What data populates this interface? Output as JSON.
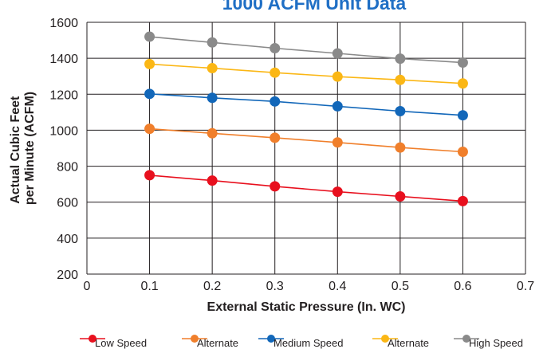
{
  "chart_data": {
    "type": "line",
    "title": "1000 ACFM Unit Data",
    "xlabel": "External Static Pressure (In. WC)",
    "ylabel_lines": [
      "Actual Cubic Feet",
      "per Minute (ACFM)"
    ],
    "xlim": [
      0,
      0.7
    ],
    "ylim": [
      200,
      1600
    ],
    "x_ticks": [
      "0",
      "0.1",
      "0.2",
      "0.3",
      "0.4",
      "0.5",
      "0.6",
      "0.7"
    ],
    "y_ticks": [
      "200",
      "400",
      "600",
      "800",
      "1000",
      "1200",
      "1400",
      "1600"
    ],
    "grid": true,
    "legend_position": "bottom",
    "x": [
      0.1,
      0.2,
      0.3,
      0.4,
      0.5,
      0.6
    ],
    "series": [
      {
        "name": "Low Speed",
        "color": "#e8101e",
        "values": [
          750,
          720,
          688,
          658,
          632,
          606
        ]
      },
      {
        "name": "Alternate",
        "color": "#f07f2b",
        "values": [
          1008,
          983,
          958,
          932,
          904,
          880
        ]
      },
      {
        "name": "Medium Speed",
        "color": "#1267b9",
        "values": [
          1202,
          1180,
          1160,
          1133,
          1106,
          1083
        ]
      },
      {
        "name": "Alternate",
        "color": "#fbb715",
        "values": [
          1368,
          1345,
          1320,
          1298,
          1280,
          1260
        ]
      },
      {
        "name": "High Speed",
        "color": "#8a8a8a",
        "values": [
          1520,
          1488,
          1456,
          1427,
          1398,
          1376
        ]
      }
    ]
  }
}
